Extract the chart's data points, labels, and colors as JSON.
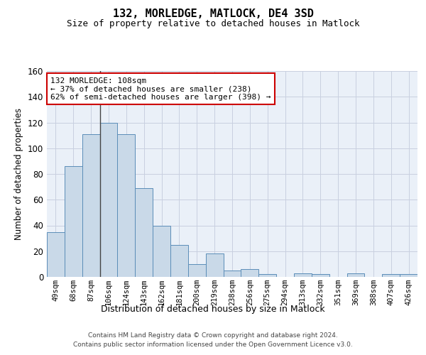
{
  "title": "132, MORLEDGE, MATLOCK, DE4 3SD",
  "subtitle": "Size of property relative to detached houses in Matlock",
  "xlabel": "Distribution of detached houses by size in Matlock",
  "ylabel": "Number of detached properties",
  "categories": [
    "49sqm",
    "68sqm",
    "87sqm",
    "106sqm",
    "124sqm",
    "143sqm",
    "162sqm",
    "181sqm",
    "200sqm",
    "219sqm",
    "238sqm",
    "256sqm",
    "275sqm",
    "294sqm",
    "313sqm",
    "332sqm",
    "351sqm",
    "369sqm",
    "388sqm",
    "407sqm",
    "426sqm"
  ],
  "values": [
    35,
    86,
    111,
    120,
    111,
    69,
    40,
    25,
    10,
    18,
    5,
    6,
    2,
    0,
    3,
    2,
    0,
    3,
    0,
    2,
    2
  ],
  "bar_color": "#c9d9e8",
  "bar_edge_color": "#5b8db8",
  "annotation_line1": "132 MORLEDGE: 108sqm",
  "annotation_line2": "← 37% of detached houses are smaller (238)",
  "annotation_line3": "62% of semi-detached houses are larger (398) →",
  "annotation_box_facecolor": "#ffffff",
  "annotation_box_edgecolor": "#cc0000",
  "vline_color": "#444444",
  "grid_color": "#c8d0e0",
  "background_color": "#eaf0f8",
  "ylim": [
    0,
    160
  ],
  "yticks": [
    0,
    20,
    40,
    60,
    80,
    100,
    120,
    140,
    160
  ],
  "footer_line1": "Contains HM Land Registry data © Crown copyright and database right 2024.",
  "footer_line2": "Contains public sector information licensed under the Open Government Licence v3.0.",
  "vline_index": 2.5
}
